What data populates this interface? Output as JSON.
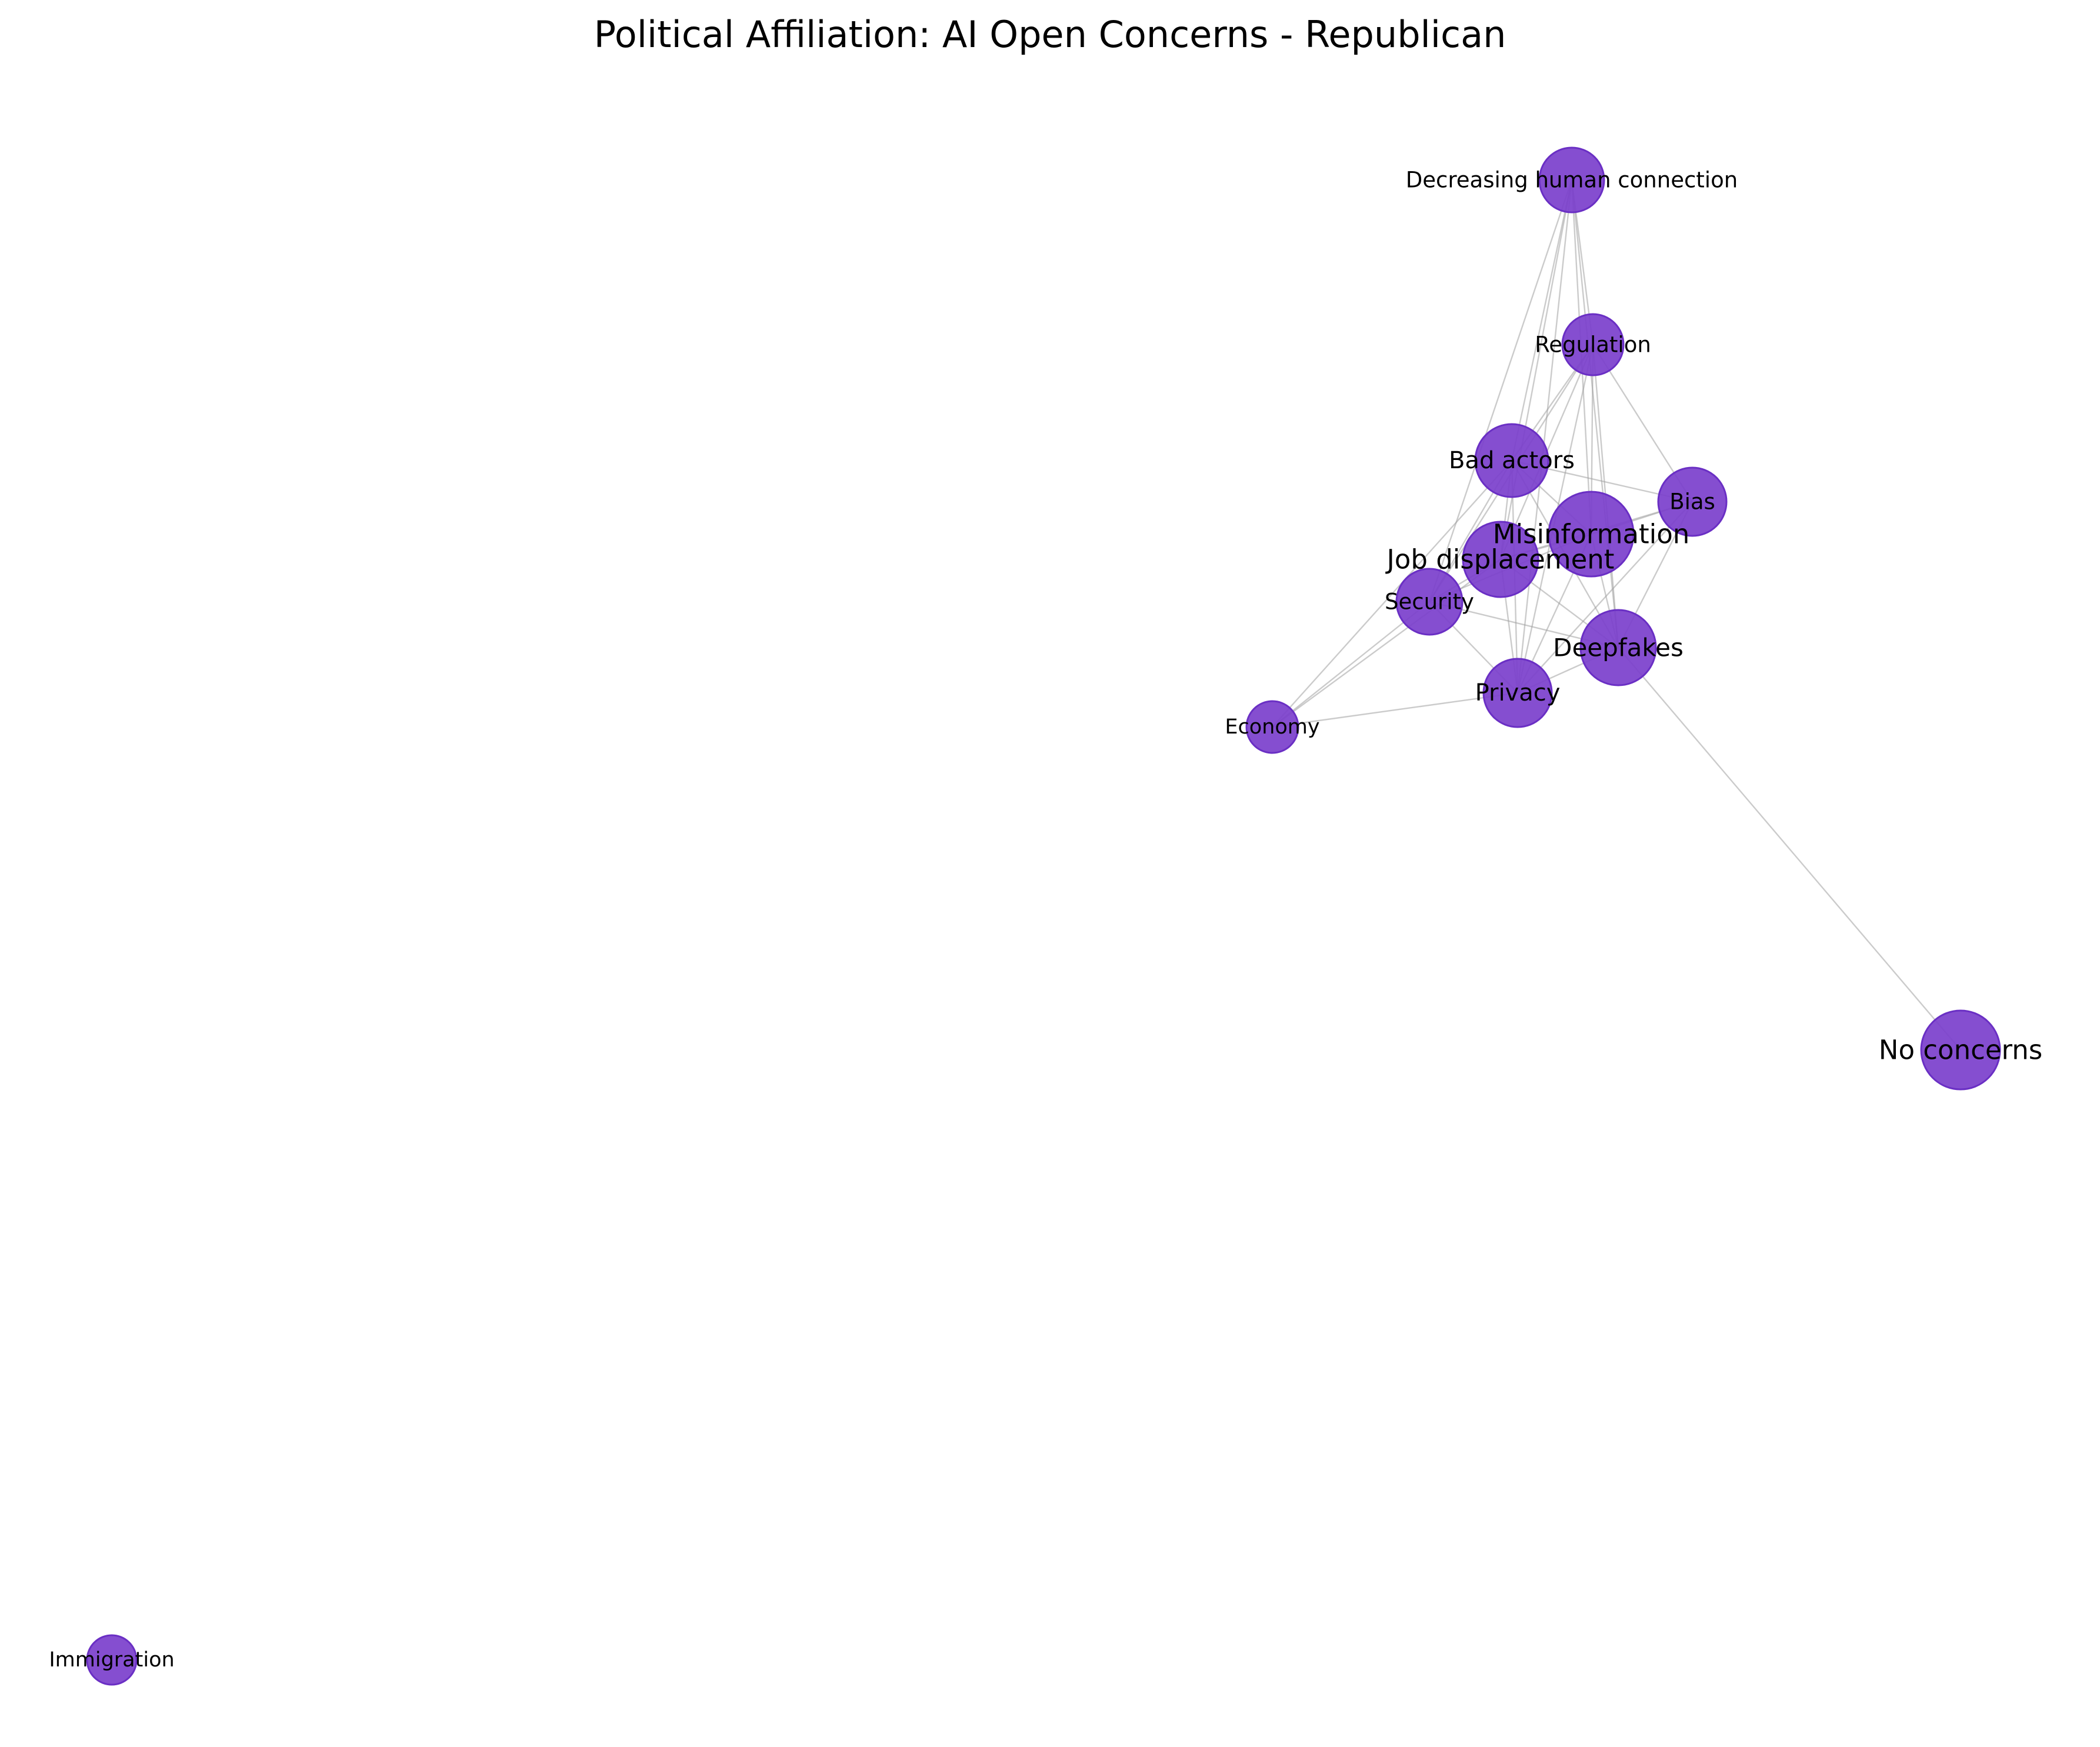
{
  "chart_data": {
    "type": "network",
    "title": "Political Affiliation: AI Open Concerns - Republican",
    "node_color": "#7b3fcc",
    "node_edge_color": "#6a2fc4",
    "edge_color": "#a0a0a0",
    "nodes": [
      {
        "id": "decreasing",
        "label": "Decreasing human connection"
      },
      {
        "id": "regulation",
        "label": "Regulation"
      },
      {
        "id": "bad_actors",
        "label": "Bad actors"
      },
      {
        "id": "bias",
        "label": "Bias"
      },
      {
        "id": "misinformation",
        "label": "Misinformation"
      },
      {
        "id": "job_displacement",
        "label": "Job displacement"
      },
      {
        "id": "security",
        "label": "Security"
      },
      {
        "id": "deepfakes",
        "label": "Deepfakes"
      },
      {
        "id": "privacy",
        "label": "Privacy"
      },
      {
        "id": "economy",
        "label": "Economy"
      },
      {
        "id": "no_concerns",
        "label": "No concerns"
      },
      {
        "id": "immigration",
        "label": "Immigration"
      }
    ],
    "edges": [
      [
        "decreasing",
        "regulation"
      ],
      [
        "decreasing",
        "bad_actors"
      ],
      [
        "decreasing",
        "misinformation"
      ],
      [
        "decreasing",
        "job_displacement"
      ],
      [
        "decreasing",
        "deepfakes"
      ],
      [
        "decreasing",
        "privacy"
      ],
      [
        "decreasing",
        "security"
      ],
      [
        "regulation",
        "bad_actors"
      ],
      [
        "regulation",
        "bias"
      ],
      [
        "regulation",
        "misinformation"
      ],
      [
        "regulation",
        "job_displacement"
      ],
      [
        "regulation",
        "deepfakes"
      ],
      [
        "regulation",
        "privacy"
      ],
      [
        "regulation",
        "security"
      ],
      [
        "bad_actors",
        "bias"
      ],
      [
        "bad_actors",
        "misinformation"
      ],
      [
        "bad_actors",
        "job_displacement"
      ],
      [
        "bad_actors",
        "deepfakes"
      ],
      [
        "bad_actors",
        "privacy"
      ],
      [
        "bad_actors",
        "security"
      ],
      [
        "bad_actors",
        "economy"
      ],
      [
        "bias",
        "misinformation"
      ],
      [
        "bias",
        "job_displacement"
      ],
      [
        "bias",
        "deepfakes"
      ],
      [
        "bias",
        "privacy"
      ],
      [
        "misinformation",
        "job_displacement"
      ],
      [
        "misinformation",
        "deepfakes"
      ],
      [
        "misinformation",
        "privacy"
      ],
      [
        "misinformation",
        "security"
      ],
      [
        "job_displacement",
        "deepfakes"
      ],
      [
        "job_displacement",
        "privacy"
      ],
      [
        "job_displacement",
        "security"
      ],
      [
        "job_displacement",
        "economy"
      ],
      [
        "security",
        "deepfakes"
      ],
      [
        "security",
        "privacy"
      ],
      [
        "security",
        "economy"
      ],
      [
        "deepfakes",
        "privacy"
      ],
      [
        "deepfakes",
        "no_concerns"
      ],
      [
        "privacy",
        "economy"
      ]
    ]
  }
}
